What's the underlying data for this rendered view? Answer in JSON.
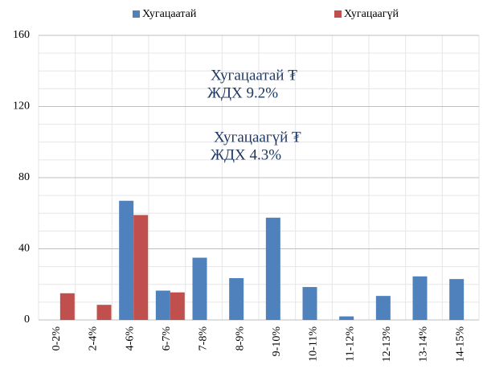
{
  "chart_data": {
    "type": "bar",
    "categories": [
      "0-2%",
      "2-4%",
      "4-6%",
      "6-7%",
      "7-8%",
      "8-9%",
      "9-10%",
      "10-11%",
      "11-12%",
      "12-13%",
      "13-14%",
      "14-15%"
    ],
    "series": [
      {
        "name": "Хугацаатай",
        "color": "#4f81bd",
        "values": [
          0,
          0,
          67,
          16.5,
          35,
          23.5,
          57.5,
          18.5,
          2,
          13.5,
          24.5,
          23
        ]
      },
      {
        "name": "Хугацаагүй",
        "color": "#c0504d",
        "values": [
          15,
          8.5,
          59,
          15.5,
          0,
          0,
          0,
          0,
          0,
          0,
          0,
          0
        ]
      }
    ],
    "ylim": [
      0,
      160
    ],
    "yticks": [
      0,
      40,
      80,
      120,
      160
    ],
    "minor_yticks": [
      10,
      20,
      30,
      50,
      60,
      70,
      90,
      100,
      110,
      130,
      140,
      150
    ],
    "grid": true,
    "legend": "top",
    "annotations": [
      {
        "lines": [
          "Хугацаатай ₮",
          "ЖДХ 9.2%"
        ]
      },
      {
        "lines": [
          "Хугацаагүй ₮",
          "ЖДХ 4.3%"
        ]
      }
    ]
  }
}
